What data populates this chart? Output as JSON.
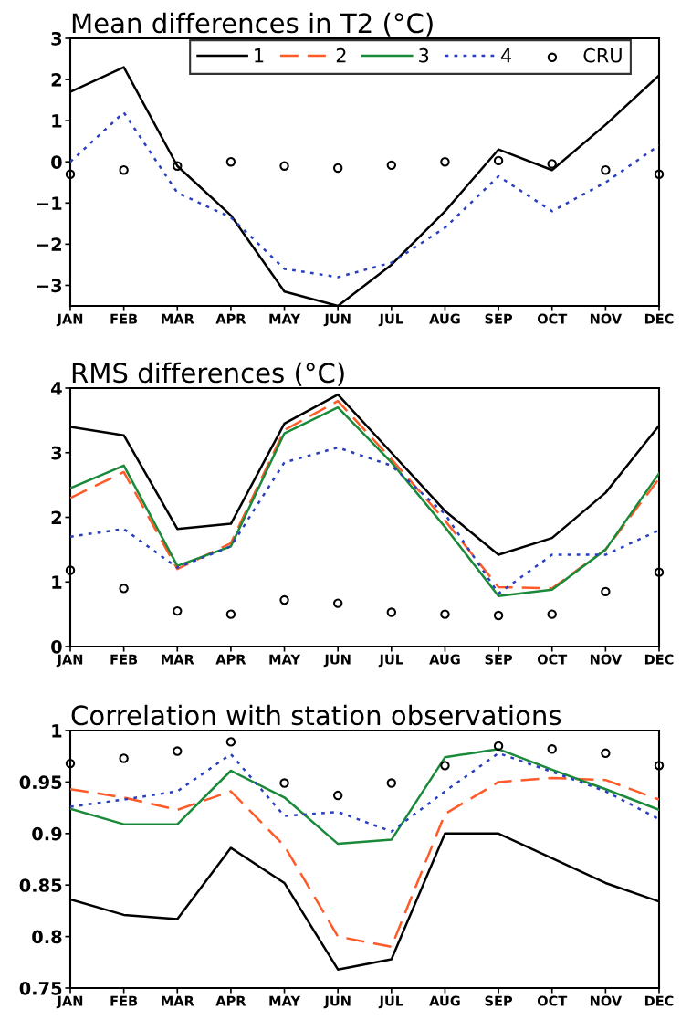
{
  "chart_data": [
    {
      "type": "line",
      "title": "Mean differences in T2 (°C)",
      "categories": [
        "JAN",
        "FEB",
        "MAR",
        "APR",
        "MAY",
        "JUN",
        "JUL",
        "AUG",
        "SEP",
        "OCT",
        "NOV",
        "DEC"
      ],
      "ylim": [
        -3.5,
        3
      ],
      "yticks": [
        {
          "value": -3,
          "label": "−3"
        },
        {
          "value": -2,
          "label": "−2"
        },
        {
          "value": -1,
          "label": "−1"
        },
        0,
        1,
        2,
        3
      ],
      "grid": false,
      "legend": "top right",
      "series": [
        {
          "name": "1",
          "color": "#000000",
          "line_style": "solid",
          "values": [
            1.7,
            2.3,
            -0.1,
            -1.3,
            -3.15,
            -3.5,
            -2.5,
            -1.2,
            0.3,
            -0.2,
            0.9,
            2.1
          ]
        },
        {
          "name": "2",
          "color": "#ff5a28",
          "line_style": "dashed",
          "values": [
            null,
            null,
            null,
            null,
            null,
            null,
            null,
            null,
            null,
            null,
            null,
            null
          ]
        },
        {
          "name": "3",
          "color": "#1a8a3a",
          "line_style": "solid",
          "values": [
            null,
            null,
            null,
            null,
            null,
            null,
            null,
            null,
            null,
            null,
            null,
            null
          ]
        },
        {
          "name": "4",
          "color": "#2a3fbf",
          "line_style": "dotted",
          "values": [
            0.0,
            1.2,
            -0.75,
            -1.35,
            -2.6,
            -2.8,
            -2.45,
            -1.6,
            -0.35,
            -1.2,
            -0.5,
            0.4
          ]
        },
        {
          "name": "CRU",
          "type": "scatter",
          "marker": "circle",
          "color": "#000000",
          "values": [
            -0.3,
            -0.2,
            -0.1,
            0.0,
            -0.1,
            -0.15,
            -0.08,
            0.0,
            0.03,
            -0.05,
            -0.2,
            -0.3
          ]
        }
      ]
    },
    {
      "type": "line",
      "title": "RMS differences (°C)",
      "categories": [
        "JAN",
        "FEB",
        "MAR",
        "APR",
        "MAY",
        "JUN",
        "JUL",
        "AUG",
        "SEP",
        "OCT",
        "NOV",
        "DEC"
      ],
      "ylim": [
        0,
        4
      ],
      "yticks": [
        0,
        1,
        2,
        3,
        4
      ],
      "grid": false,
      "series": [
        {
          "color": "#000000",
          "line_style": "solid",
          "values": [
            3.4,
            3.27,
            1.82,
            1.9,
            3.45,
            3.9,
            3.0,
            2.1,
            1.42,
            1.68,
            2.38,
            3.42
          ]
        },
        {
          "color": "#ff5a28",
          "line_style": "dashed",
          "values": [
            2.3,
            2.7,
            1.2,
            1.6,
            3.35,
            3.8,
            2.9,
            1.95,
            0.92,
            0.9,
            1.5,
            2.6
          ]
        },
        {
          "color": "#1a8a3a",
          "line_style": "solid",
          "values": [
            2.45,
            2.8,
            1.25,
            1.55,
            3.3,
            3.7,
            2.85,
            1.85,
            0.78,
            0.88,
            1.5,
            2.68
          ]
        },
        {
          "color": "#2a3fbf",
          "line_style": "dotted",
          "values": [
            1.7,
            1.82,
            1.22,
            1.55,
            2.85,
            3.08,
            2.8,
            2.05,
            0.82,
            1.42,
            1.42,
            1.8
          ]
        },
        {
          "type": "scatter",
          "marker": "circle",
          "color": "#000000",
          "values": [
            1.18,
            0.9,
            0.55,
            0.5,
            0.72,
            0.67,
            0.53,
            0.5,
            0.48,
            0.5,
            0.85,
            1.15
          ]
        }
      ]
    },
    {
      "type": "line",
      "title": "Correlation with station observations",
      "categories": [
        "JAN",
        "FEB",
        "MAR",
        "APR",
        "MAY",
        "JUN",
        "JUL",
        "AUG",
        "SEP",
        "OCT",
        "NOV",
        "DEC"
      ],
      "ylim": [
        0.75,
        1
      ],
      "yticks": [
        0.75,
        0.8,
        0.85,
        0.9,
        0.95,
        1
      ],
      "grid": false,
      "series": [
        {
          "color": "#000000",
          "line_style": "solid",
          "values": [
            0.836,
            0.821,
            0.817,
            0.886,
            0.852,
            0.768,
            0.778,
            0.9,
            0.9,
            0.876,
            0.852,
            0.834
          ]
        },
        {
          "color": "#ff5a28",
          "line_style": "dashed",
          "values": [
            0.943,
            0.935,
            0.923,
            0.941,
            0.888,
            0.8,
            0.79,
            0.919,
            0.95,
            0.954,
            0.952,
            0.933
          ]
        },
        {
          "color": "#1a8a3a",
          "line_style": "solid",
          "values": [
            0.924,
            0.909,
            0.909,
            0.961,
            0.935,
            0.89,
            0.894,
            0.974,
            0.982,
            0.962,
            0.943,
            0.923
          ]
        },
        {
          "color": "#2a3fbf",
          "line_style": "dotted",
          "values": [
            0.926,
            0.933,
            0.941,
            0.977,
            0.917,
            0.921,
            0.902,
            0.941,
            0.978,
            0.96,
            0.941,
            0.914
          ]
        },
        {
          "type": "scatter",
          "marker": "circle",
          "color": "#000000",
          "values": [
            0.968,
            0.973,
            0.98,
            0.989,
            0.949,
            0.937,
            0.949,
            0.966,
            0.985,
            0.982,
            0.978,
            0.966
          ]
        }
      ]
    }
  ]
}
